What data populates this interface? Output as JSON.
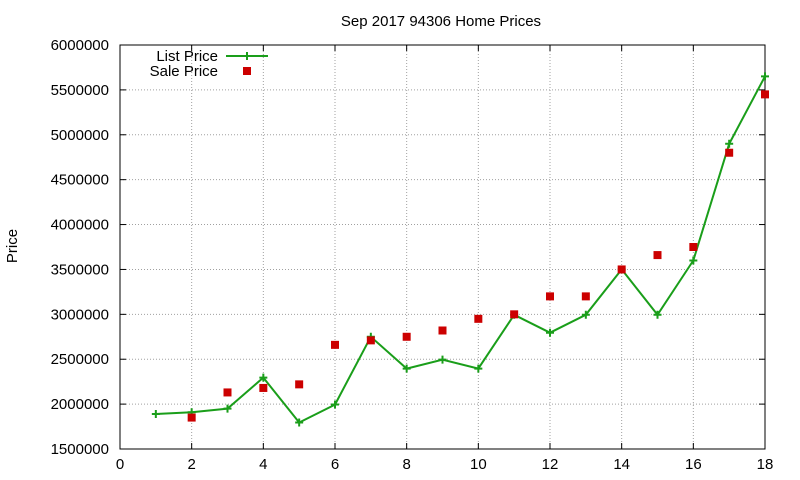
{
  "chart_data": {
    "type": "line",
    "title": "Sep 2017 94306 Home Prices",
    "xlabel": "",
    "ylabel": "Price",
    "xlim": [
      0,
      18
    ],
    "ylim": [
      1500000,
      6000000
    ],
    "x_ticks": [
      0,
      2,
      4,
      6,
      8,
      10,
      12,
      14,
      16,
      18
    ],
    "y_ticks": [
      1500000,
      2000000,
      2500000,
      3000000,
      3500000,
      4000000,
      4500000,
      5000000,
      5500000,
      6000000
    ],
    "grid": true,
    "legend_position": "top-left",
    "series": [
      {
        "name": "List Price",
        "style": "line-with-plus-markers",
        "color": "#1a9e1a",
        "x": [
          1,
          2,
          3,
          4,
          5,
          6,
          7,
          8,
          9,
          10,
          11,
          12,
          13,
          14,
          15,
          16,
          17,
          18
        ],
        "y": [
          1890000,
          1910000,
          1950000,
          2295000,
          1795000,
          1995000,
          2750000,
          2395000,
          2495000,
          2395000,
          2995000,
          2795000,
          2995000,
          3500000,
          2995000,
          3600000,
          4900000,
          5650000
        ]
      },
      {
        "name": "Sale Price",
        "style": "square-markers",
        "color": "#cc0000",
        "x": [
          2,
          3,
          4,
          5,
          6,
          7,
          8,
          9,
          10,
          11,
          12,
          13,
          14,
          15,
          16,
          17,
          18
        ],
        "y": [
          1850000,
          2130000,
          2180000,
          2220000,
          2660000,
          2710000,
          2750000,
          2820000,
          2950000,
          3000000,
          3200000,
          3200000,
          3500000,
          3660000,
          3750000,
          4800000,
          5450000
        ]
      }
    ]
  }
}
